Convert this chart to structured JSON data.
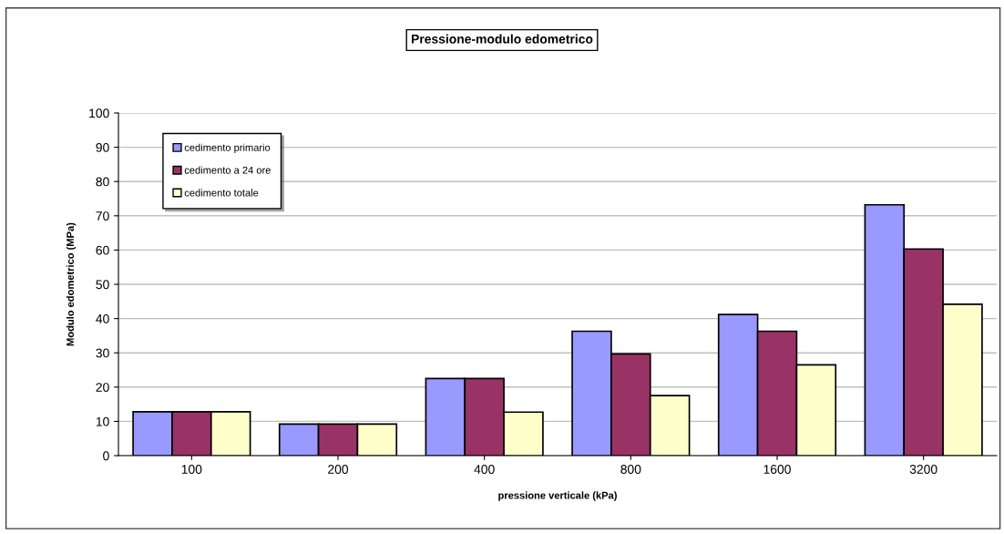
{
  "chart_data": {
    "type": "bar",
    "title": "Pressione-modulo edometrico",
    "xlabel": "pressione verticale (kPa)",
    "ylabel": "Modulo edometrico (MPa)",
    "categories": [
      "100",
      "200",
      "400",
      "800",
      "1600",
      "3200"
    ],
    "series": [
      {
        "name": "cedimento primario",
        "color": "#9999ff",
        "values": [
          12.8,
          9.2,
          22.5,
          36.3,
          41.2,
          73.2
        ]
      },
      {
        "name": "cedimento a 24 ore",
        "color": "#993366",
        "values": [
          12.8,
          9.2,
          22.5,
          29.7,
          36.3,
          60.3
        ]
      },
      {
        "name": "cedimento totale",
        "color": "#ffffcc",
        "values": [
          12.8,
          9.2,
          12.7,
          17.5,
          26.5,
          44.2
        ]
      }
    ],
    "ylim": [
      0,
      100
    ],
    "yticks": [
      0,
      10,
      20,
      30,
      40,
      50,
      60,
      70,
      80,
      90,
      100
    ],
    "grid": "y",
    "legend": "top left"
  }
}
